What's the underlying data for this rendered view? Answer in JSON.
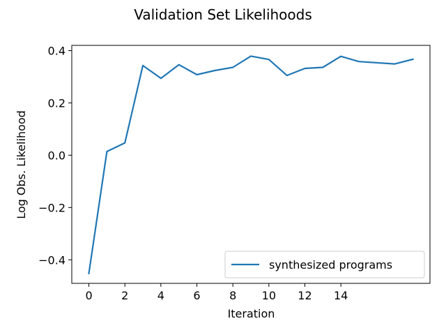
{
  "chart_data": {
    "type": "line",
    "title": "Validation Set Likelihoods",
    "xlabel": "Iteration",
    "ylabel": "Log Obs. Likelihood",
    "xlim": [
      -0.95,
      18.95
    ],
    "ylim": [
      -0.49,
      0.42
    ],
    "xticks": [
      0,
      2,
      4,
      6,
      8,
      10,
      12,
      14
    ],
    "xtick_labels": [
      "0",
      "2",
      "4",
      "6",
      "8",
      "10",
      "12",
      "14"
    ],
    "yticks": [
      -0.4,
      -0.2,
      0.0,
      0.2,
      0.4
    ],
    "ytick_labels": [
      "−0.4",
      "−0.2",
      "0.0",
      "0.2",
      "0.4"
    ],
    "grid": false,
    "legend_position": "lower-right",
    "series": [
      {
        "name": "synthesized programs",
        "color": "#1f77b4",
        "x": [
          0,
          1,
          2,
          3,
          4,
          5,
          6,
          7,
          8,
          9,
          10,
          11,
          12,
          13,
          14,
          15,
          17,
          18
        ],
        "y": [
          -0.452,
          0.014,
          0.047,
          0.343,
          0.294,
          0.346,
          0.308,
          0.324,
          0.336,
          0.379,
          0.366,
          0.305,
          0.332,
          0.336,
          0.378,
          0.358,
          0.349,
          0.367
        ]
      }
    ]
  }
}
